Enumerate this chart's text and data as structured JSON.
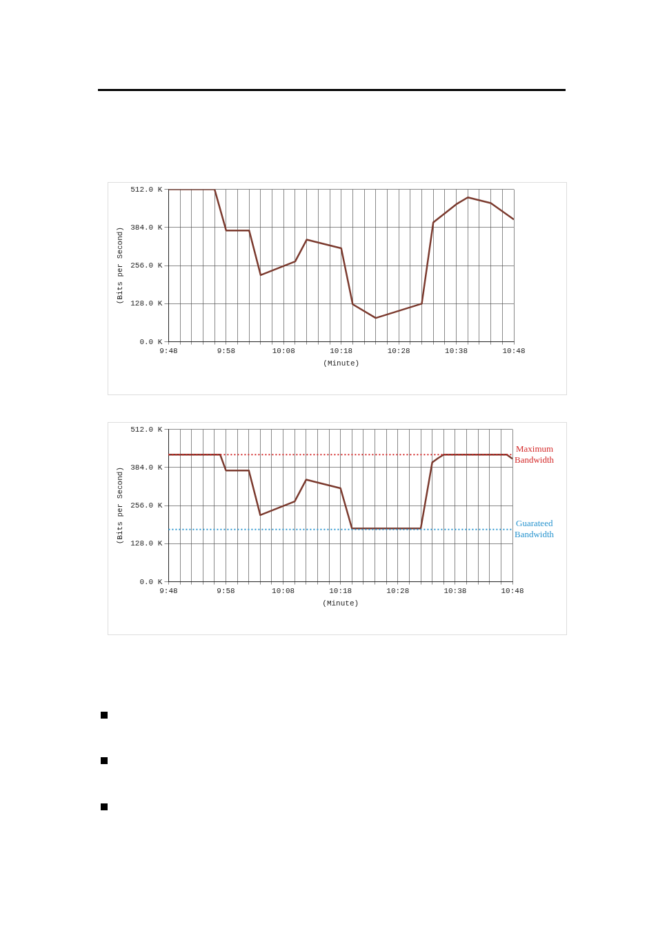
{
  "chart_data": [
    {
      "type": "line",
      "xlabel": "(Minute)",
      "ylabel": "(Bits per Second)",
      "xlim": [
        9.8,
        10.8
      ],
      "ylim": [
        0,
        512
      ],
      "xticks": [
        {
          "value": 9.8,
          "label": "9:48"
        },
        {
          "value": 9.8333,
          "label": null
        },
        {
          "value": 9.8667,
          "label": null
        },
        {
          "value": 9.9,
          "label": null
        },
        {
          "value": 9.9333,
          "label": null
        },
        {
          "value": 9.9667,
          "label": "9:58"
        },
        {
          "value": 10,
          "label": null
        },
        {
          "value": 10.0333,
          "label": null
        },
        {
          "value": 10.0667,
          "label": null
        },
        {
          "value": 10.1,
          "label": null
        },
        {
          "value": 10.1333,
          "label": "10:08"
        },
        {
          "value": 10.1667,
          "label": null
        },
        {
          "value": 10.2,
          "label": null
        },
        {
          "value": 10.2333,
          "label": null
        },
        {
          "value": 10.2667,
          "label": null
        },
        {
          "value": 10.3,
          "label": "10:18"
        },
        {
          "value": 10.3333,
          "label": null
        },
        {
          "value": 10.3667,
          "label": null
        },
        {
          "value": 10.4,
          "label": null
        },
        {
          "value": 10.4333,
          "label": null
        },
        {
          "value": 10.4667,
          "label": "10:28"
        },
        {
          "value": 10.5,
          "label": null
        },
        {
          "value": 10.5333,
          "label": null
        },
        {
          "value": 10.5667,
          "label": null
        },
        {
          "value": 10.6,
          "label": null
        },
        {
          "value": 10.6333,
          "label": "10:38"
        },
        {
          "value": 10.6667,
          "label": null
        },
        {
          "value": 10.7,
          "label": null
        },
        {
          "value": 10.7333,
          "label": null
        },
        {
          "value": 10.7667,
          "label": null
        },
        {
          "value": 10.8,
          "label": "10:48"
        }
      ],
      "yticks": [
        {
          "value": 0,
          "label": "0.0 K"
        },
        {
          "value": 128,
          "label": "128.0 K"
        },
        {
          "value": 256,
          "label": "256.0 K"
        },
        {
          "value": 384,
          "label": "384.0 K"
        },
        {
          "value": 512,
          "label": "512.0 K"
        }
      ],
      "grid": true,
      "legend": false,
      "marker": "none",
      "line_style": "solid",
      "series": [
        {
          "color": "#7b3a2e",
          "x": [
            9.8,
            9.9333,
            9.9667,
            10.0333,
            10.0667,
            10.1667,
            10.2,
            10.3,
            10.3333,
            10.4,
            10.5333,
            10.5667,
            10.6333,
            10.6667,
            10.7333,
            10.8
          ],
          "values": [
            512,
            512,
            374,
            374,
            224,
            270,
            343,
            314,
            126,
            80,
            128,
            401,
            462,
            485,
            466,
            411
          ]
        }
      ]
    },
    {
      "type": "line",
      "xlabel": "(Minute)",
      "ylabel": "(Bits per Second)",
      "xlim": [
        9.8,
        10.8
      ],
      "ylim": [
        0,
        512
      ],
      "xticks": [
        {
          "value": 9.8,
          "label": "9:48"
        },
        {
          "value": 9.8333,
          "label": null
        },
        {
          "value": 9.8667,
          "label": null
        },
        {
          "value": 9.9,
          "label": null
        },
        {
          "value": 9.9333,
          "label": null
        },
        {
          "value": 9.9667,
          "label": "9:58"
        },
        {
          "value": 10,
          "label": null
        },
        {
          "value": 10.0333,
          "label": null
        },
        {
          "value": 10.0667,
          "label": null
        },
        {
          "value": 10.1,
          "label": null
        },
        {
          "value": 10.1333,
          "label": "10:08"
        },
        {
          "value": 10.1667,
          "label": null
        },
        {
          "value": 10.2,
          "label": null
        },
        {
          "value": 10.2333,
          "label": null
        },
        {
          "value": 10.2667,
          "label": null
        },
        {
          "value": 10.3,
          "label": "10:18"
        },
        {
          "value": 10.3333,
          "label": null
        },
        {
          "value": 10.3667,
          "label": null
        },
        {
          "value": 10.4,
          "label": null
        },
        {
          "value": 10.4333,
          "label": null
        },
        {
          "value": 10.4667,
          "label": "10:28"
        },
        {
          "value": 10.5,
          "label": null
        },
        {
          "value": 10.5333,
          "label": null
        },
        {
          "value": 10.5667,
          "label": null
        },
        {
          "value": 10.6,
          "label": null
        },
        {
          "value": 10.6333,
          "label": "10:38"
        },
        {
          "value": 10.6667,
          "label": null
        },
        {
          "value": 10.7,
          "label": null
        },
        {
          "value": 10.7333,
          "label": null
        },
        {
          "value": 10.7667,
          "label": null
        },
        {
          "value": 10.8,
          "label": "10:48"
        }
      ],
      "yticks": [
        {
          "value": 0,
          "label": "0.0 K"
        },
        {
          "value": 128,
          "label": "128.0 K"
        },
        {
          "value": 256,
          "label": "256.0 K"
        },
        {
          "value": 384,
          "label": "384.0 K"
        },
        {
          "value": 512,
          "label": "512.0 K"
        }
      ],
      "grid": true,
      "legend": false,
      "marker": "none",
      "line_style": "solid",
      "series": [
        {
          "color": "#7b3a2e",
          "x": [
            9.8,
            9.95,
            9.9667,
            10.0333,
            10.0667,
            10.1667,
            10.2,
            10.3,
            10.3333,
            10.5333,
            10.5667,
            10.5833,
            10.6,
            10.7833,
            10.8
          ],
          "values": [
            427,
            427,
            374,
            374,
            224,
            270,
            343,
            314,
            179,
            179,
            401,
            415,
            427,
            427,
            413
          ]
        }
      ],
      "ref_lines": [
        {
          "axis": "y",
          "value": 427,
          "label": "Maximum Bandwidth",
          "color": "#d42a2a",
          "line_style": "dotted"
        },
        {
          "axis": "y",
          "value": 176,
          "label": "Guarateed Bandwidth",
          "color": "#2a95cf",
          "line_style": "dotted"
        }
      ]
    }
  ]
}
